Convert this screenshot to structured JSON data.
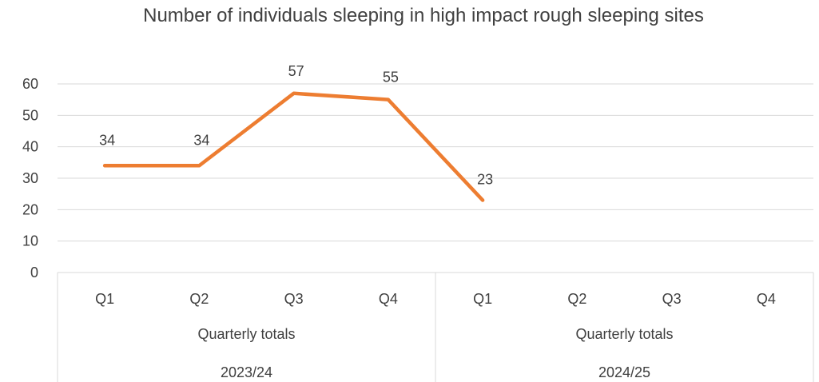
{
  "chart_data": {
    "type": "line",
    "title": "Number of individuals sleeping in high impact rough sleeping sites",
    "xlabel": "",
    "ylabel": "",
    "ylim": [
      0,
      60
    ],
    "yticks": [
      "0",
      "10",
      "20",
      "30",
      "40",
      "50",
      "60"
    ],
    "grid": true,
    "legend": "none",
    "series_color": "#ED7D31",
    "categories": [
      "Q1",
      "Q2",
      "Q3",
      "Q4",
      "Q1",
      "Q2",
      "Q3",
      "Q4"
    ],
    "groups_level1": [
      {
        "label": "Quarterly totals",
        "span": 4
      },
      {
        "label": "Quarterly totals",
        "span": 4
      }
    ],
    "groups_level2": [
      {
        "label": "2023/24",
        "span": 4
      },
      {
        "label": "2024/25",
        "span": 4
      }
    ],
    "series": [
      {
        "values": [
          34,
          34,
          57,
          55,
          23,
          null,
          null,
          null
        ]
      }
    ]
  }
}
